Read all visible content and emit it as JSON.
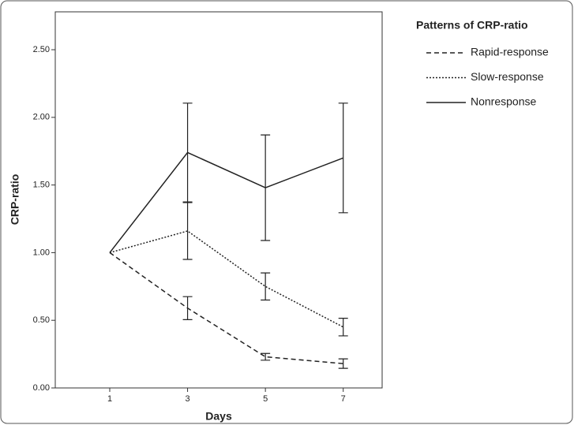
{
  "chart_data": {
    "type": "line",
    "x_label": "Days",
    "y_label": "CRP-ratio",
    "legend_title": "Patterns of CRP-ratio",
    "x": [
      1,
      3,
      5,
      7
    ],
    "xlim": [
      -0.4,
      8
    ],
    "xticks": [
      1,
      3,
      5,
      7
    ],
    "ylim": [
      0,
      2.78
    ],
    "yticks": [
      {
        "value": 0,
        "label": "0.00"
      },
      {
        "value": 0.5,
        "label": "0.50"
      },
      {
        "value": 1,
        "label": "1.00"
      },
      {
        "value": 1.5,
        "label": "1.50"
      },
      {
        "value": 2,
        "label": "2.00"
      },
      {
        "value": 2.5,
        "label": "2.50"
      }
    ],
    "series": [
      {
        "name": "Rapid-response",
        "color": "#222222",
        "style": "dashed",
        "values": [
          1.0,
          0.59,
          0.23,
          0.18
        ],
        "errors": [
          null,
          0.085,
          0.025,
          0.035
        ]
      },
      {
        "name": "Slow-response",
        "color": "#222222",
        "style": "dotted",
        "values": [
          1.0,
          1.16,
          0.75,
          0.45
        ],
        "errors": [
          null,
          0.21,
          0.1,
          0.065
        ]
      },
      {
        "name": "Nonresponse",
        "color": "#222222",
        "style": "solid",
        "values": [
          1.0,
          1.74,
          1.48,
          1.7
        ],
        "errors": [
          null,
          0.365,
          0.39,
          0.405
        ]
      }
    ]
  }
}
